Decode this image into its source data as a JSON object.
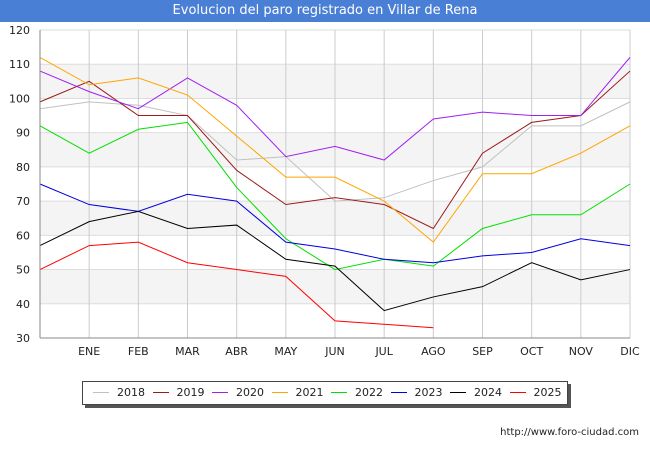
{
  "chart_data": {
    "type": "line",
    "title": "Evolucion del paro registrado en Villar de Rena",
    "xlabel": "",
    "ylabel": "",
    "categories": [
      "",
      "ENE",
      "FEB",
      "MAR",
      "ABR",
      "MAY",
      "JUN",
      "JUL",
      "AGO",
      "SEP",
      "OCT",
      "NOV",
      "DIC"
    ],
    "ylim": [
      30,
      120
    ],
    "yticks": [
      "30",
      "40",
      "50",
      "60",
      "70",
      "80",
      "90",
      "100",
      "110",
      "120"
    ],
    "grid": true,
    "legend_position": "bottom",
    "series": [
      {
        "name": "2018",
        "color": "#c0c0c0",
        "values": [
          97,
          99,
          98,
          95,
          82,
          83,
          70,
          71,
          76,
          80,
          92,
          92,
          99
        ]
      },
      {
        "name": "2019",
        "color": "#9b1a1a",
        "values": [
          99,
          105,
          95,
          95,
          79,
          69,
          71,
          69,
          62,
          84,
          93,
          95,
          108
        ]
      },
      {
        "name": "2020",
        "color": "#a020f0",
        "values": [
          108,
          102,
          97,
          106,
          98,
          83,
          86,
          82,
          94,
          96,
          95,
          95,
          112
        ]
      },
      {
        "name": "2021",
        "color": "#ffa500",
        "values": [
          112,
          104,
          106,
          101,
          89,
          77,
          77,
          70,
          58,
          78,
          78,
          84,
          92
        ]
      },
      {
        "name": "2022",
        "color": "#00e000",
        "values": [
          92,
          84,
          91,
          93,
          74,
          59,
          50,
          53,
          51,
          62,
          66,
          66,
          75
        ]
      },
      {
        "name": "2023",
        "color": "#0000e0",
        "values": [
          75,
          69,
          67,
          72,
          70,
          58,
          56,
          53,
          52,
          54,
          55,
          59,
          57
        ]
      },
      {
        "name": "2024",
        "color": "#000000",
        "values": [
          57,
          64,
          67,
          62,
          63,
          53,
          51,
          38,
          42,
          45,
          52,
          47,
          50
        ]
      },
      {
        "name": "2025",
        "color": "#ff0000",
        "values": [
          50,
          57,
          58,
          52,
          50,
          48,
          35,
          34,
          33,
          null,
          null,
          null,
          null
        ]
      }
    ]
  },
  "footer": {
    "url": "http://www.foro-ciudad.com"
  }
}
